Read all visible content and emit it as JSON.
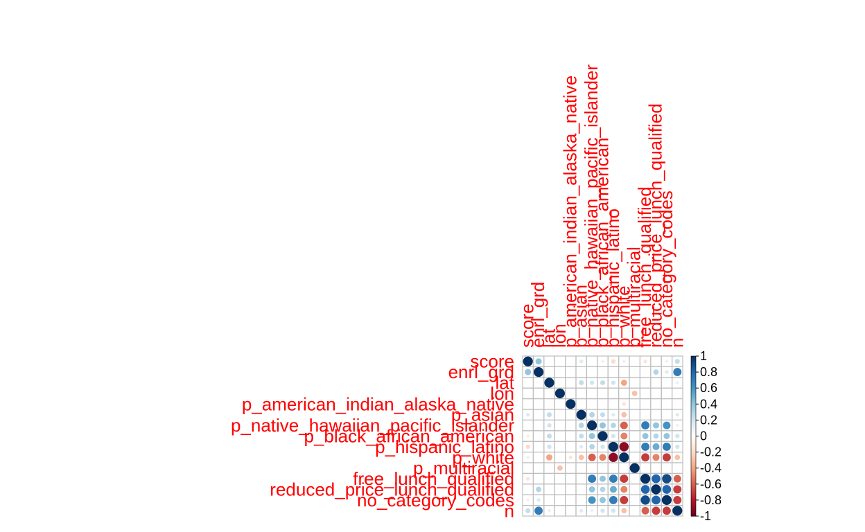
{
  "chart_data": {
    "type": "heatmap",
    "title": "",
    "variables": [
      "score",
      "enrl_grd",
      "lat",
      "lon",
      "p_american_indian_alaska_native",
      "p_asian",
      "p_native_hawaiian_pacific_islander",
      "p_black_african_american",
      "p_hispanic_latino",
      "p_white",
      "p_multiracial",
      "free_lunch_qualified",
      "reduced_price_lunch_qualified",
      "no_category_codes",
      "n"
    ],
    "matrix": [
      [
        1.0,
        0.4,
        0.0,
        0.0,
        0.0,
        0.15,
        0.0,
        -0.1,
        -0.2,
        0.1,
        0.0,
        -0.15,
        0.0,
        -0.1,
        0.25
      ],
      [
        0.4,
        1.0,
        0.0,
        0.0,
        0.0,
        0.0,
        0.0,
        0.0,
        0.0,
        0.0,
        0.0,
        0.0,
        0.3,
        0.15,
        0.7
      ],
      [
        0.0,
        0.0,
        1.0,
        0.0,
        0.0,
        0.25,
        0.2,
        0.25,
        0.2,
        -0.4,
        0.0,
        0.0,
        0.0,
        0.0,
        0.1
      ],
      [
        0.0,
        0.0,
        0.0,
        1.0,
        0.0,
        0.0,
        0.0,
        0.0,
        0.0,
        0.0,
        -0.3,
        0.0,
        0.0,
        0.0,
        0.0
      ],
      [
        0.0,
        0.0,
        0.0,
        0.0,
        1.0,
        0.0,
        0.0,
        0.0,
        0.0,
        -0.15,
        0.0,
        0.0,
        0.0,
        0.0,
        0.0
      ],
      [
        0.15,
        0.0,
        0.25,
        0.0,
        0.0,
        1.0,
        0.3,
        0.25,
        0.15,
        -0.3,
        0.0,
        0.0,
        0.0,
        0.0,
        0.15
      ],
      [
        0.0,
        0.0,
        0.2,
        0.0,
        0.0,
        0.3,
        1.0,
        0.4,
        0.3,
        -0.6,
        0.0,
        0.7,
        0.4,
        0.6,
        0.1
      ],
      [
        -0.1,
        0.0,
        0.25,
        0.0,
        0.0,
        0.25,
        0.4,
        1.0,
        0.2,
        -0.5,
        0.0,
        0.4,
        0.3,
        0.4,
        0.2
      ],
      [
        -0.2,
        0.0,
        0.2,
        0.0,
        0.0,
        0.15,
        0.3,
        0.2,
        1.0,
        -0.9,
        0.0,
        0.7,
        0.5,
        0.7,
        0.2
      ],
      [
        0.1,
        0.0,
        -0.4,
        0.0,
        -0.15,
        -0.3,
        -0.6,
        -0.5,
        -0.9,
        1.0,
        0.0,
        -0.7,
        -0.5,
        -0.7,
        -0.3
      ],
      [
        0.0,
        0.0,
        0.0,
        -0.3,
        0.0,
        0.0,
        0.0,
        0.0,
        0.0,
        0.0,
        1.0,
        0.0,
        0.0,
        0.0,
        0.0
      ],
      [
        -0.15,
        0.0,
        0.0,
        0.0,
        0.0,
        0.0,
        0.7,
        0.4,
        0.7,
        -0.7,
        0.0,
        1.0,
        0.8,
        0.9,
        -0.6
      ],
      [
        0.0,
        0.3,
        0.0,
        0.0,
        0.0,
        0.0,
        0.4,
        0.3,
        0.5,
        -0.5,
        0.0,
        0.8,
        1.0,
        0.8,
        -0.7
      ],
      [
        -0.1,
        0.15,
        0.0,
        0.0,
        0.0,
        0.0,
        0.6,
        0.4,
        0.7,
        -0.7,
        0.0,
        0.9,
        0.8,
        1.0,
        -0.7
      ],
      [
        0.25,
        0.7,
        0.1,
        0.0,
        0.0,
        0.15,
        0.1,
        0.2,
        0.2,
        -0.3,
        0.0,
        -0.6,
        -0.7,
        -0.7,
        1.0
      ]
    ],
    "colorbar": {
      "ticks": [
        "1",
        "0.8",
        "0.6",
        "0.4",
        "0.2",
        "0",
        "-0.2",
        "-0.4",
        "-0.6",
        "-0.8",
        "-1"
      ],
      "range": [
        -1,
        1
      ],
      "colors": [
        "#67001F",
        "#B2182B",
        "#D6604D",
        "#F4A582",
        "#FDDBC7",
        "#FFFFFF",
        "#D1E5F0",
        "#92C5DE",
        "#4393C3",
        "#2166AC",
        "#053061"
      ]
    },
    "label_color": "#FF0000",
    "grid_color": "#BEBEBE",
    "legend": "right"
  }
}
